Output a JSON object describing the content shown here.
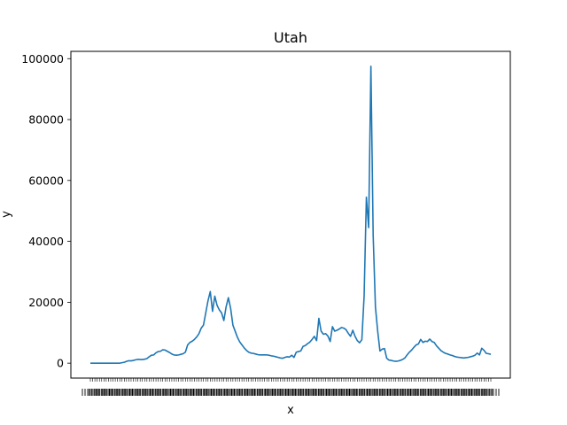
{
  "chart_data": {
    "type": "line",
    "title": "Utah",
    "xlabel": "x",
    "ylabel": "y",
    "ylim": [
      -4900,
      102400
    ],
    "yticks": [
      0,
      20000,
      40000,
      60000,
      80000,
      100000
    ],
    "ytick_labels": [
      "0",
      "20000",
      "40000",
      "60000",
      "80000",
      "100000"
    ],
    "line_color": "#1f77b4",
    "grid": false,
    "legend": "none",
    "x_labels_note": "category axis with ~190 densely overlapping tick labels (unreadable)",
    "series": [
      {
        "values": [
          0,
          0,
          0,
          0,
          0,
          0,
          0,
          0,
          0,
          0,
          0,
          0,
          0,
          0,
          150,
          300,
          600,
          800,
          750,
          900,
          1100,
          1250,
          1200,
          1200,
          1300,
          1500,
          2100,
          2600,
          2700,
          3400,
          3800,
          3900,
          4400,
          4300,
          3900,
          3500,
          3000,
          2700,
          2600,
          2700,
          2900,
          3100,
          3600,
          6000,
          6800,
          7200,
          7800,
          8600,
          9700,
          11500,
          12500,
          16500,
          20500,
          23500,
          17000,
          22000,
          19000,
          17500,
          16500,
          14000,
          18500,
          21500,
          18000,
          12500,
          10500,
          8500,
          7000,
          6000,
          5000,
          4200,
          3600,
          3300,
          3200,
          3000,
          2800,
          2700,
          2700,
          2700,
          2700,
          2600,
          2400,
          2300,
          2100,
          1900,
          1700,
          1600,
          1900,
          2100,
          2000,
          2600,
          1900,
          3600,
          3800,
          4000,
          5500,
          5800,
          6400,
          6900,
          7800,
          8800,
          7400,
          14700,
          10500,
          9500,
          9700,
          8900,
          7100,
          12000,
          10500,
          10800,
          11200,
          11700,
          11500,
          11000,
          9800,
          8800,
          10800,
          8800,
          7400,
          6700,
          7700,
          22000,
          54500,
          44500,
          97500,
          42000,
          18500,
          10500,
          4000,
          4600,
          4800,
          1600,
          1000,
          900,
          700,
          600,
          700,
          900,
          1200,
          1700,
          2700,
          3600,
          4300,
          5200,
          6000,
          6300,
          7800,
          6800,
          7200,
          7100,
          7900,
          7100,
          6800,
          5700,
          4900,
          4100,
          3600,
          3200,
          3000,
          2700,
          2500,
          2200,
          2000,
          1900,
          1800,
          1700,
          1800,
          1900,
          2100,
          2300,
          2600,
          3300,
          2700,
          4900,
          4200,
          3200,
          3100,
          2900
        ]
      }
    ]
  }
}
